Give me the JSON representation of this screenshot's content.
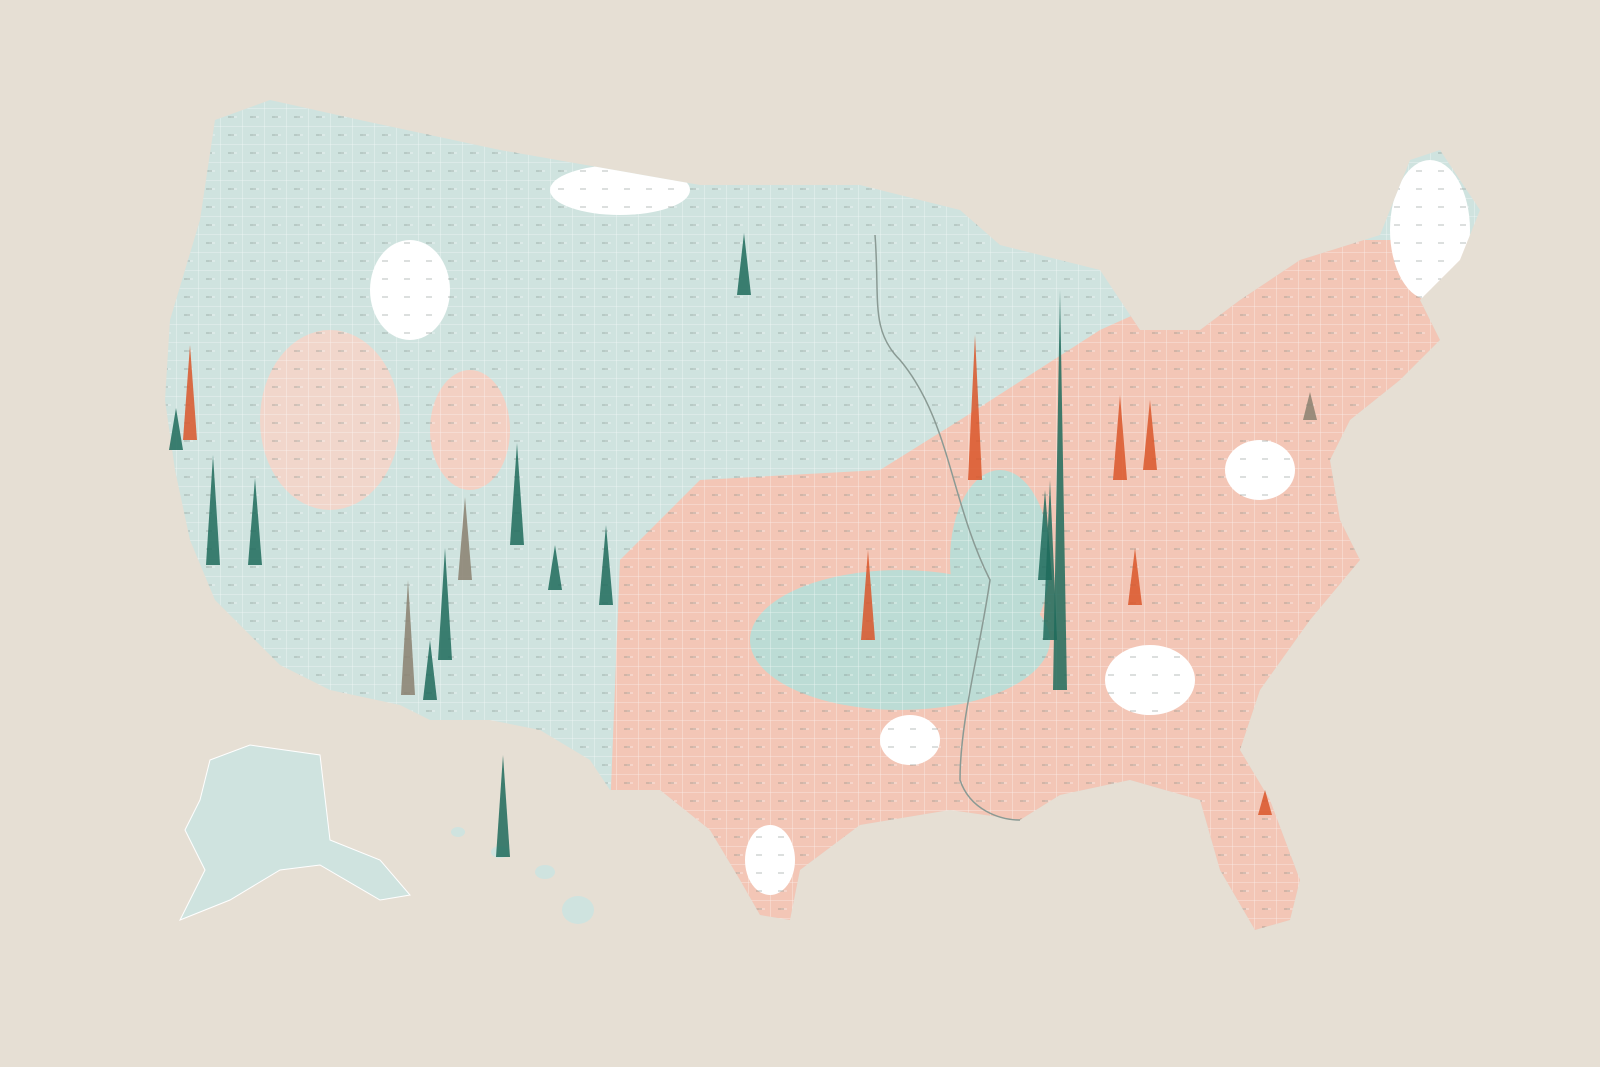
{
  "spikes": [
    {
      "value": 400,
      "color": "#1e6b5c"
    },
    {
      "value": 160,
      "color": "#1e6b5c"
    },
    {
      "value": 62,
      "color": "#1e6b5c"
    },
    {
      "value": 95,
      "color": "#d9562a"
    },
    {
      "value": 110,
      "color": "#1e6b5c"
    },
    {
      "value": 87,
      "color": "#1e6b5c"
    },
    {
      "value": 102,
      "color": "#1e6b5c"
    },
    {
      "value": 112,
      "color": "#1e6b5c"
    },
    {
      "value": 115,
      "color": "#8a8070"
    },
    {
      "value": 80,
      "color": "#1e6b5c"
    },
    {
      "value": 102,
      "color": "#1e6b5c"
    },
    {
      "value": 145,
      "color": "#d9562a"
    },
    {
      "value": 85,
      "color": "#d9562a"
    },
    {
      "value": 70,
      "color": "#d9562a"
    },
    {
      "value": 90,
      "color": "#d9562a"
    },
    {
      "value": 57,
      "color": "#d9562a"
    },
    {
      "value": 28,
      "color": "#8a8070"
    },
    {
      "value": 83,
      "color": "#8a8070"
    },
    {
      "value": 45,
      "color": "#1e6b5c"
    },
    {
      "value": 90,
      "color": "#1e6b5c"
    },
    {
      "value": 25,
      "color": "#d9562a"
    },
    {
      "value": 42,
      "color": "#1e6b5c"
    },
    {
      "value": 60,
      "color": "#1e6b5c"
    }
  ]
}
